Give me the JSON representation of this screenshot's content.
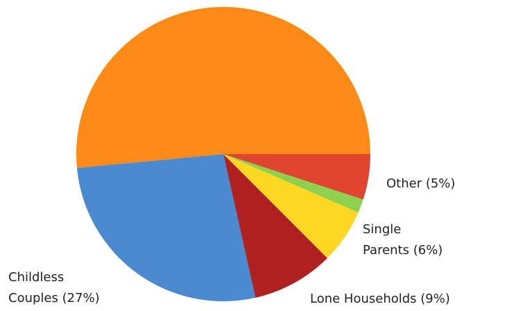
{
  "chart_data": {
    "type": "pie",
    "categories": [
      "Other (5%)",
      null,
      "Single\nParents (6%)",
      "Lone Households (9%)",
      "Childless\nCouples (27%)",
      null
    ],
    "values": [
      5,
      1.5,
      6,
      9,
      27,
      51.5
    ],
    "colors": [
      "#e0452f",
      "#8fd14f",
      "#fcd823",
      "#b02222",
      "#4a8ad0",
      "#fb8a16"
    ]
  }
}
